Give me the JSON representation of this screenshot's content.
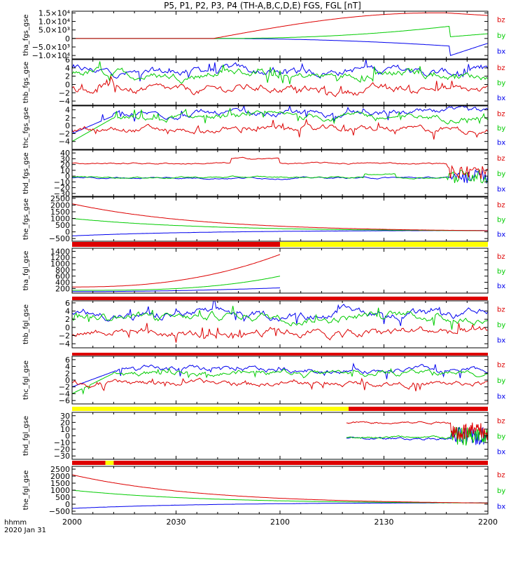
{
  "chart_data": {
    "type": "line",
    "title": "P5, P1, P2, P3, P4 (TH-A,B,C,D,E) FGS, FGL [nT]",
    "x_axis": {
      "ticks": [
        "2000",
        "2030",
        "2100",
        "2130",
        "2200"
      ],
      "label_line1": "hhmm",
      "label_line2": "2020 Jan 31"
    },
    "legend": [
      {
        "name": "bz",
        "color": "#dd0000"
      },
      {
        "name": "by",
        "color": "#00cc00"
      },
      {
        "name": "bx",
        "color": "#0000ee"
      }
    ],
    "panels": [
      {
        "ylabel": "tha_fgs_gse",
        "yticks": [
          "1.5×10⁴",
          "1.0×10⁴",
          "5.0×10³",
          "0",
          "−5.0×10³",
          "−1.0×10⁴"
        ],
        "ylim": [
          -12000,
          16000
        ],
        "tick_values": [
          15000,
          10000,
          5000,
          0,
          -5000,
          -10000
        ],
        "kind": "tha"
      },
      {
        "ylabel": "thb_fgs_gse",
        "yticks": [
          "6",
          "4",
          "2",
          "0",
          "−2",
          "−4"
        ],
        "ylim": [
          -5,
          6
        ],
        "tick_values": [
          6,
          4,
          2,
          0,
          -2,
          -4
        ],
        "kind": "noise1"
      },
      {
        "ylabel": "thc_fgs_gse",
        "yticks": [
          "4",
          "2",
          "0",
          "−2",
          "−4"
        ],
        "ylim": [
          -6,
          5
        ],
        "tick_values": [
          4,
          2,
          0,
          -2,
          -4
        ],
        "kind": "noise2"
      },
      {
        "ylabel": "thd_fgs_gse",
        "yticks": [
          "40",
          "30",
          "20",
          "10",
          "0",
          "−10",
          "−20",
          "−30"
        ],
        "ylim": [
          -35,
          45
        ],
        "tick_values": [
          40,
          30,
          20,
          10,
          0,
          -10,
          -20,
          -30
        ],
        "kind": "thd"
      },
      {
        "ylabel": "the_fgs_gse",
        "yticks": [
          "2500",
          "2000",
          "1500",
          "1000",
          "500",
          "0",
          "−500"
        ],
        "ylim": [
          -700,
          2600
        ],
        "tick_values": [
          2500,
          2000,
          1500,
          1000,
          500,
          0,
          -500
        ],
        "kind": "the"
      },
      {
        "ylabel": "tha_fgl_gse",
        "yticks": [
          "1400",
          "1200",
          "1000",
          "800",
          "600",
          "400",
          "200"
        ],
        "ylim": [
          50,
          1500
        ],
        "tick_values": [
          1400,
          1200,
          1000,
          800,
          600,
          400,
          200
        ],
        "kind": "thafgl"
      },
      {
        "ylabel": "thb_fgl_gse",
        "yticks": [
          "6",
          "4",
          "2",
          "0",
          "−2",
          "−4"
        ],
        "ylim": [
          -5,
          6.5
        ],
        "tick_values": [
          6,
          4,
          2,
          0,
          -2,
          -4
        ],
        "kind": "noise1"
      },
      {
        "ylabel": "thc_fgl_gse",
        "yticks": [
          "6",
          "4",
          "2",
          "0",
          "−2",
          "−4",
          "−6"
        ],
        "ylim": [
          -7,
          7
        ],
        "tick_values": [
          6,
          4,
          2,
          0,
          -2,
          -4,
          -6
        ],
        "kind": "noise2"
      },
      {
        "ylabel": "thd_fgl_gse",
        "yticks": [
          "30",
          "20",
          "10",
          "0",
          "−10",
          "−20",
          "−30"
        ],
        "ylim": [
          -35,
          35
        ],
        "tick_values": [
          30,
          20,
          10,
          0,
          -10,
          -20,
          -30
        ],
        "kind": "thdfgl"
      },
      {
        "ylabel": "the_fgl_gse",
        "yticks": [
          "2500",
          "2000",
          "1500",
          "1000",
          "500",
          "0",
          "−500"
        ],
        "ylim": [
          -700,
          2700
        ],
        "tick_values": [
          2500,
          2000,
          1500,
          1000,
          500,
          0,
          -500
        ],
        "kind": "the"
      }
    ],
    "grid": false,
    "legend_placement": "right of each panel"
  }
}
